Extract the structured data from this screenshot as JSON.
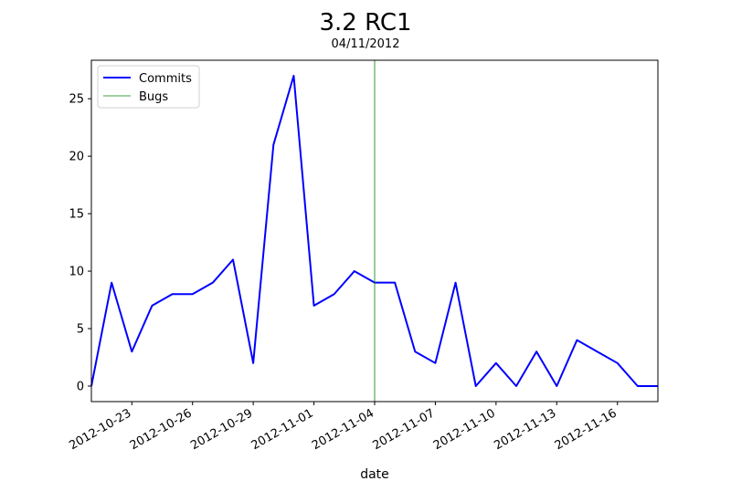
{
  "chart_data": {
    "type": "line",
    "title": "3.2 RC1",
    "subtitle": "04/11/2012",
    "xlabel": "date",
    "ylabel": "",
    "x": [
      "2012-10-21",
      "2012-10-22",
      "2012-10-23",
      "2012-10-24",
      "2012-10-25",
      "2012-10-26",
      "2012-10-27",
      "2012-10-28",
      "2012-10-29",
      "2012-10-30",
      "2012-10-31",
      "2012-11-01",
      "2012-11-02",
      "2012-11-03",
      "2012-11-04",
      "2012-11-05",
      "2012-11-06",
      "2012-11-07",
      "2012-11-08",
      "2012-11-09",
      "2012-11-10",
      "2012-11-11",
      "2012-11-12",
      "2012-11-13",
      "2012-11-14",
      "2012-11-15",
      "2012-11-16",
      "2012-11-17",
      "2012-11-18"
    ],
    "series": [
      {
        "name": "Commits",
        "color": "#0000ff",
        "values": [
          0,
          9,
          3,
          7,
          8,
          8,
          9,
          11,
          2,
          21,
          27,
          7,
          8,
          10,
          9,
          9,
          3,
          2,
          9,
          0,
          2,
          0,
          3,
          0,
          4,
          3,
          2,
          0,
          0
        ]
      },
      {
        "name": "Bugs",
        "color": "#008000",
        "type": "vline",
        "x": "2012-11-04"
      }
    ],
    "x_range": [
      "2012-10-21",
      "2012-11-18"
    ],
    "ylim": [
      -1.35,
      28.35
    ],
    "x_ticks": [
      "2012-10-23",
      "2012-10-26",
      "2012-10-29",
      "2012-11-01",
      "2012-11-04",
      "2012-11-07",
      "2012-11-10",
      "2012-11-13",
      "2012-11-16"
    ],
    "y_ticks": [
      0,
      5,
      10,
      15,
      20,
      25
    ],
    "legend": [
      "Commits",
      "Bugs"
    ],
    "legend_position": "top-left",
    "grid": false
  }
}
